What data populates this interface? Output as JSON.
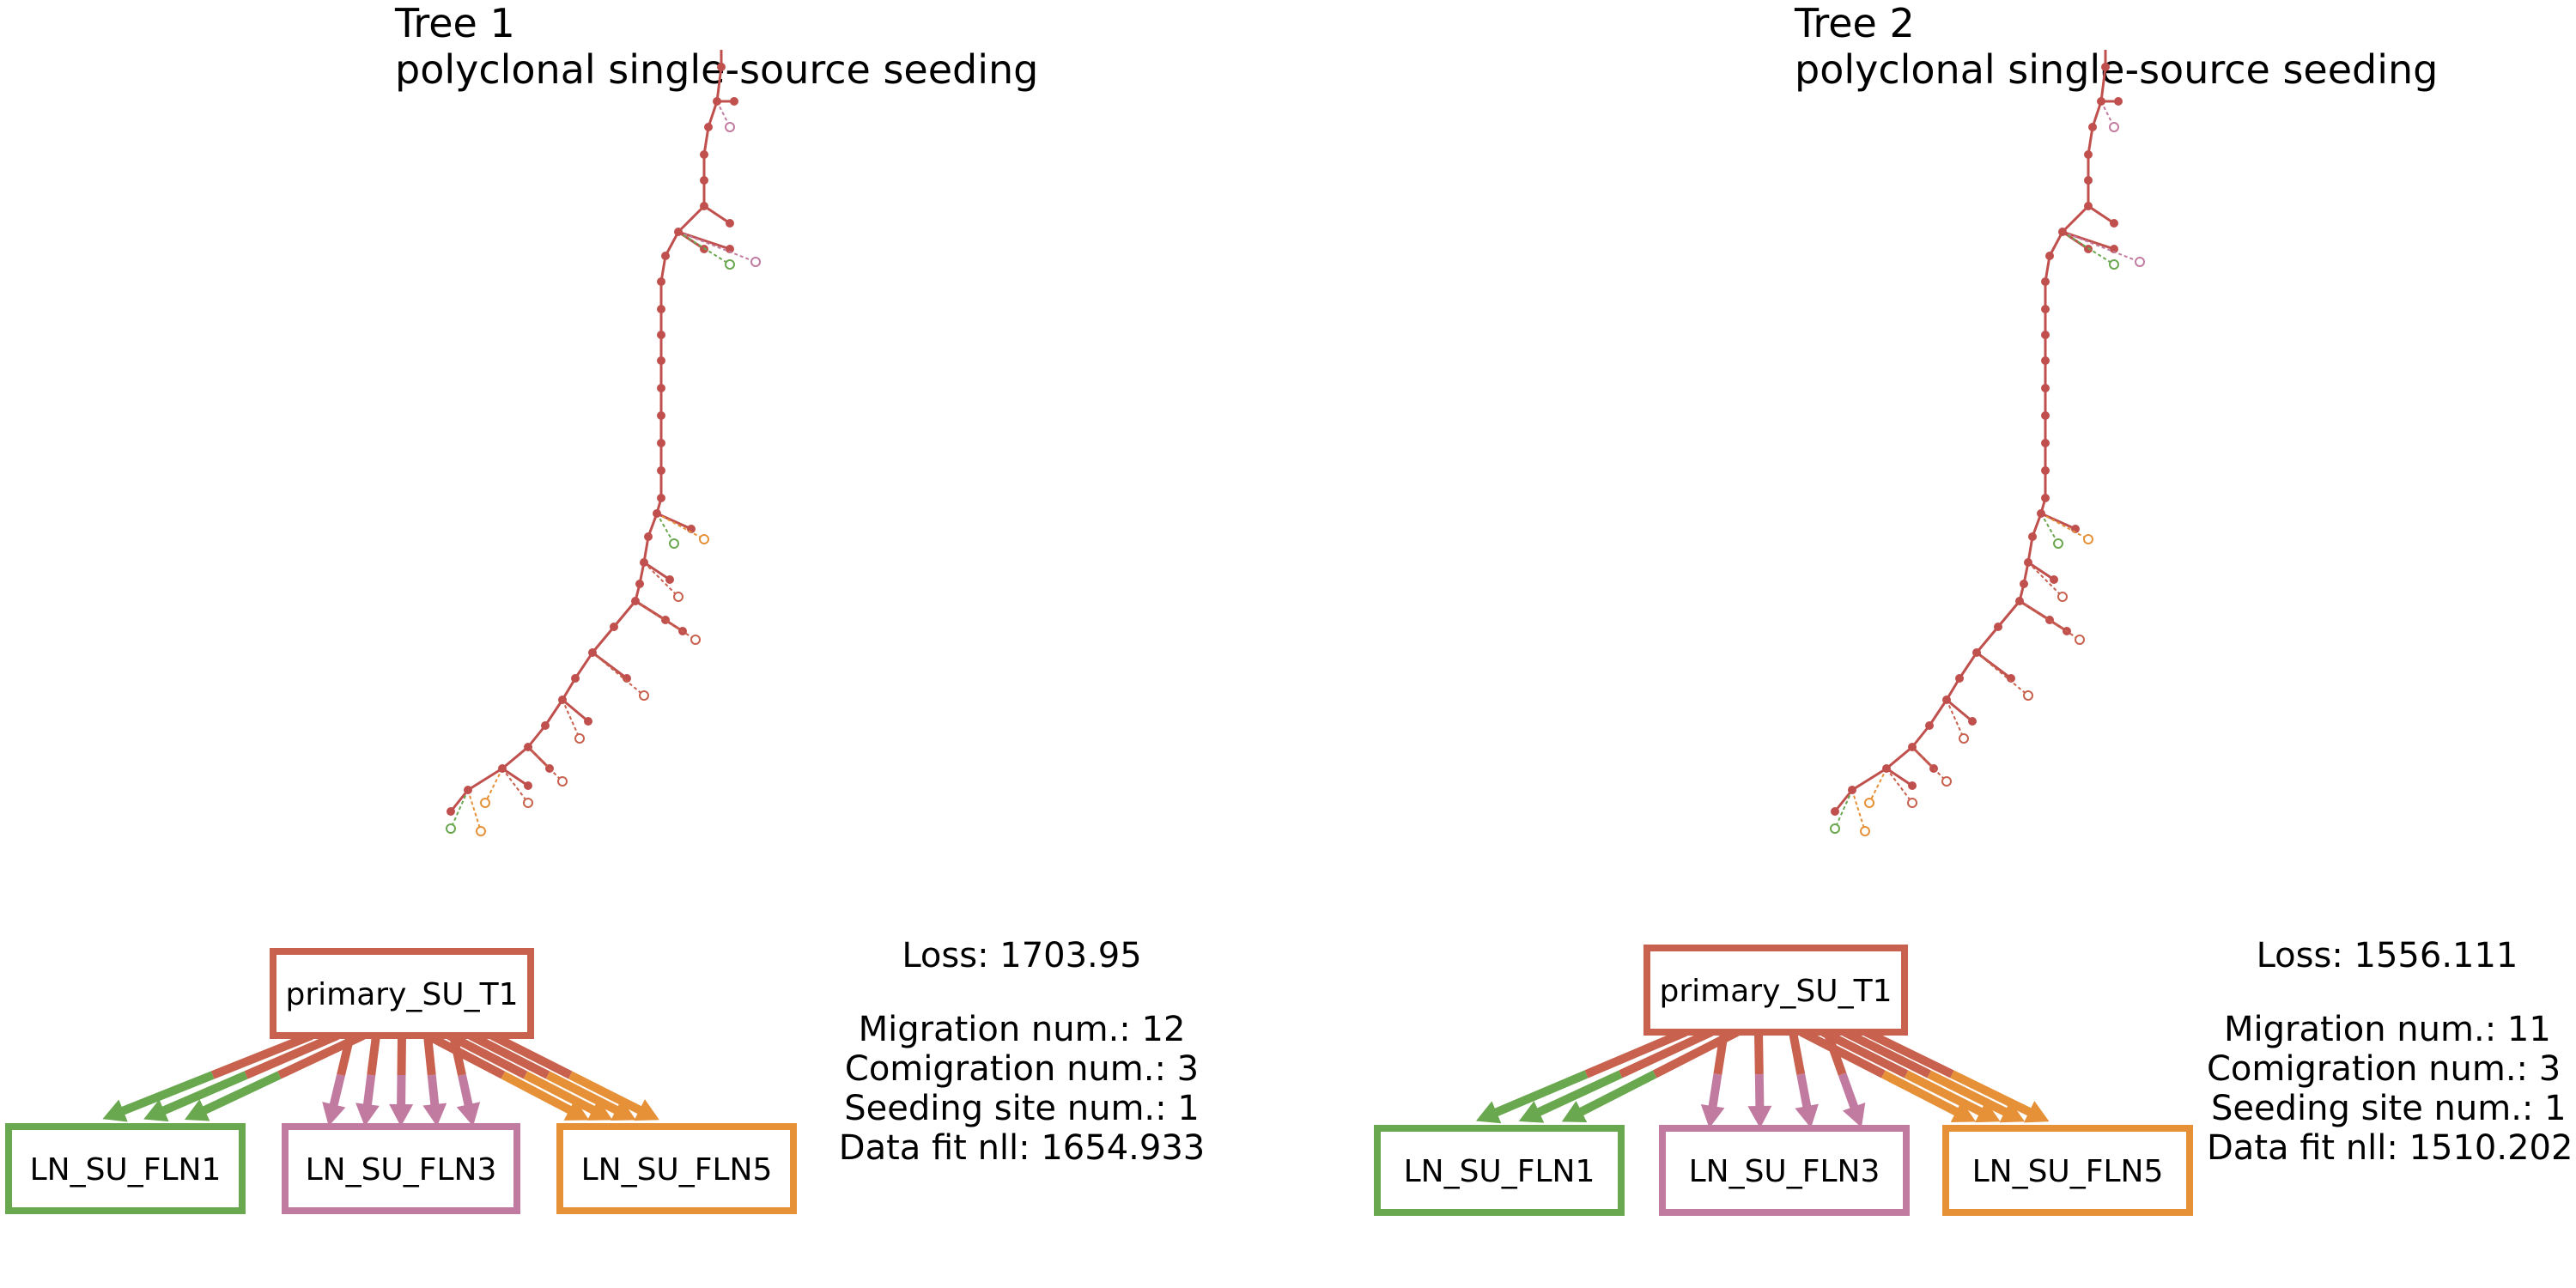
{
  "colors": {
    "primary": "#c8614e",
    "ln1": "#6aa84f",
    "ln3": "#c27ba0",
    "ln5": "#e69138",
    "node": "#c0504d"
  },
  "panels": [
    {
      "title": "Tree 1",
      "subtitle": "polyclonal single-source seeding",
      "graph": {
        "source": "primary_SU_T1",
        "targets": [
          {
            "label": "LN_SU_FLN1",
            "color_key": "ln1",
            "edges": 3
          },
          {
            "label": "LN_SU_FLN3",
            "color_key": "ln3",
            "edges": 5
          },
          {
            "label": "LN_SU_FLN5",
            "color_key": "ln5",
            "edges": 4
          }
        ]
      },
      "stats": {
        "loss": "Loss: 1703.95",
        "migration": "Migration num.: 12",
        "comigration": "Comigration num.: 3",
        "seeding": "Seeding site num.: 1",
        "datafit": "Data fit nll: 1654.933"
      }
    },
    {
      "title": "Tree 2",
      "subtitle": "polyclonal single-source seeding",
      "graph": {
        "source": "primary_SU_T1",
        "targets": [
          {
            "label": "LN_SU_FLN1",
            "color_key": "ln1",
            "edges": 3
          },
          {
            "label": "LN_SU_FLN3",
            "color_key": "ln3",
            "edges": 4
          },
          {
            "label": "LN_SU_FLN5",
            "color_key": "ln5",
            "edges": 4
          }
        ]
      },
      "stats": {
        "loss": "Loss: 1556.111",
        "migration": "Migration num.: 11",
        "comigration": "Comigration num.: 3",
        "seeding": "Seeding site num.: 1",
        "datafit": "Data fit nll: 1510.202"
      }
    }
  ]
}
